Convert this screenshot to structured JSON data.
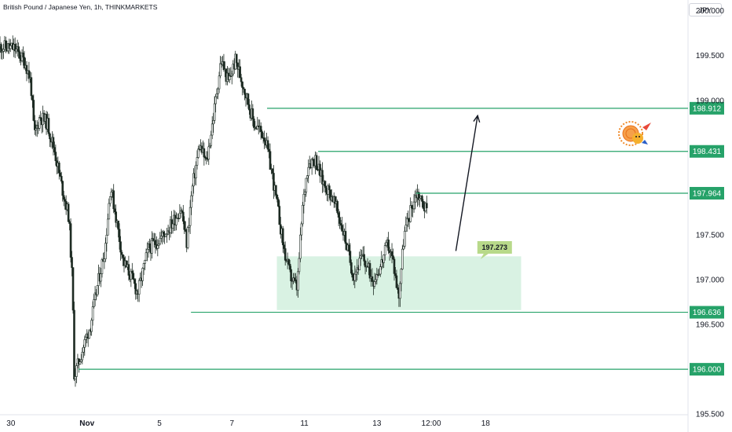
{
  "header": {
    "title": "British Pound / Japanese Yen, 1h, THINKMARKETS",
    "currency": "JPY"
  },
  "colors": {
    "level_line": "#26a269",
    "level_tag": "#26a269",
    "zone_fill": "#d9f2e3",
    "callout": "#b8d98a",
    "candle": "#1c2a22",
    "axis_text": "#131722"
  },
  "chart_data": {
    "type": "candlestick",
    "y_axis": {
      "min": 195.3,
      "max": 200.12,
      "ticks": [
        "195.500",
        "196.500",
        "197.000",
        "197.500",
        "199.000",
        "199.500",
        "200.000"
      ]
    },
    "x_axis": {
      "min": 0,
      "max": 20.2,
      "ticks": [
        {
          "label": "30",
          "t": 0.3
        },
        {
          "label": "Nov",
          "t": 2.4
        },
        {
          "label": "5",
          "t": 4.4
        },
        {
          "label": "7",
          "t": 6.4
        },
        {
          "label": "11",
          "t": 8.4
        },
        {
          "label": "13",
          "t": 10.4
        },
        {
          "label": "12:00",
          "t": 11.9
        },
        {
          "label": "18",
          "t": 13.4
        }
      ]
    },
    "levels": [
      {
        "label": "198.912",
        "value": 198.912,
        "t_start": 7.37
      },
      {
        "label": "198.431",
        "value": 198.431,
        "t_start": 8.78
      },
      {
        "label": "197.964",
        "value": 197.964,
        "t_start": 11.48
      },
      {
        "label": "196.636",
        "value": 196.636,
        "t_start": 5.27
      },
      {
        "label": "196.000",
        "value": 196.0,
        "t_start": 2.16
      }
    ],
    "zone": {
      "t_start": 7.64,
      "t_end": 14.38,
      "top": 197.26,
      "bottom": 196.66
    },
    "callout": {
      "label": "197.273",
      "t": 13.65,
      "value": 197.36
    },
    "arrow": {
      "t_start": 12.58,
      "v_start": 197.32,
      "t_end": 13.18,
      "v_end": 198.83
    },
    "price_path": [
      [
        0.0,
        199.6
      ],
      [
        0.4,
        199.58
      ],
      [
        0.7,
        199.42
      ],
      [
        0.85,
        199.2
      ],
      [
        0.95,
        198.6
      ],
      [
        1.1,
        198.82
      ],
      [
        1.3,
        198.75
      ],
      [
        1.5,
        198.45
      ],
      [
        1.7,
        198.05
      ],
      [
        1.9,
        197.7
      ],
      [
        2.0,
        196.95
      ],
      [
        2.05,
        195.92
      ],
      [
        2.15,
        196.05
      ],
      [
        2.3,
        196.25
      ],
      [
        2.5,
        196.5
      ],
      [
        2.7,
        196.95
      ],
      [
        2.9,
        197.35
      ],
      [
        3.05,
        198.05
      ],
      [
        3.2,
        197.7
      ],
      [
        3.4,
        197.2
      ],
      [
        3.6,
        197.05
      ],
      [
        3.8,
        196.85
      ],
      [
        4.1,
        197.35
      ],
      [
        4.4,
        197.45
      ],
      [
        4.7,
        197.6
      ],
      [
        5.0,
        197.8
      ],
      [
        5.15,
        197.4
      ],
      [
        5.3,
        198.0
      ],
      [
        5.5,
        198.5
      ],
      [
        5.7,
        198.3
      ],
      [
        5.9,
        198.85
      ],
      [
        6.1,
        199.45
      ],
      [
        6.3,
        199.2
      ],
      [
        6.5,
        199.45
      ],
      [
        6.8,
        199.05
      ],
      [
        7.0,
        198.75
      ],
      [
        7.3,
        198.6
      ],
      [
        7.5,
        198.2
      ],
      [
        7.7,
        197.7
      ],
      [
        7.85,
        197.3
      ],
      [
        8.0,
        197.05
      ],
      [
        8.2,
        196.9
      ],
      [
        8.35,
        197.8
      ],
      [
        8.5,
        198.3
      ],
      [
        8.7,
        198.35
      ],
      [
        8.9,
        198.1
      ],
      [
        9.2,
        197.9
      ],
      [
        9.5,
        197.5
      ],
      [
        9.75,
        197.05
      ],
      [
        10.0,
        197.25
      ],
      [
        10.3,
        197.0
      ],
      [
        10.5,
        197.15
      ],
      [
        10.7,
        197.4
      ],
      [
        10.85,
        197.2
      ],
      [
        11.0,
        196.8
      ],
      [
        11.15,
        197.5
      ],
      [
        11.35,
        197.8
      ],
      [
        11.5,
        197.98
      ],
      [
        11.8,
        197.75
      ]
    ]
  }
}
